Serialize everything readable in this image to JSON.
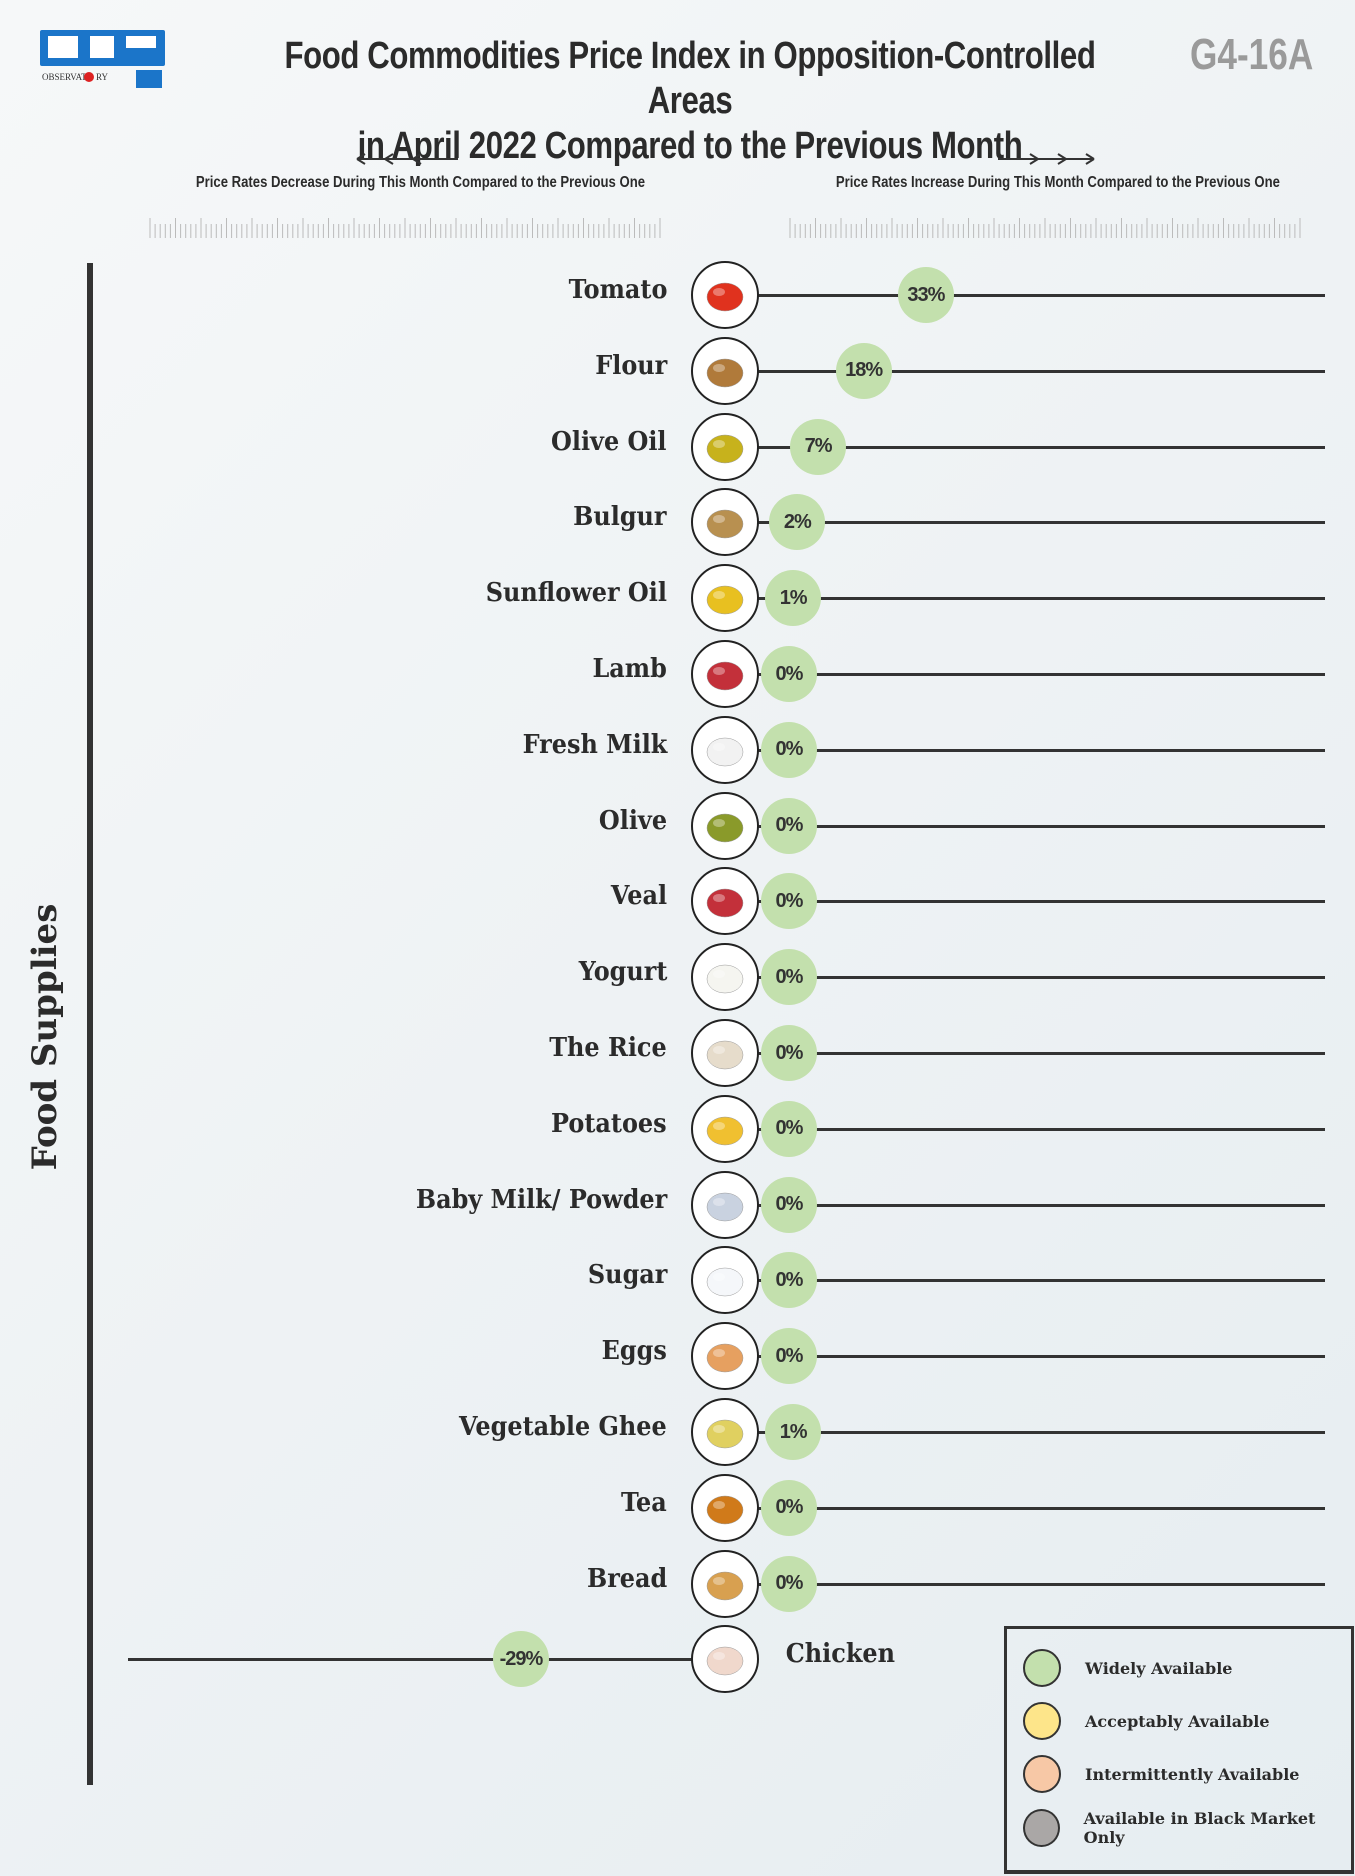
{
  "header": {
    "logo_text": "OBSERVATORY",
    "title_line1": "Food  Commodities Price Index in Opposition-Controlled Areas",
    "title_line2": "in April 2022 Compared to the Previous Month",
    "code": "G4-16A"
  },
  "axis": {
    "decrease_label": "Price Rates Decrease During This Month Compared to the Previous One",
    "increase_label": "Price Rates Increase During This Month Compared to the Previous One"
  },
  "side_label": "Food Supplies",
  "colors": {
    "widely": "#c3e0ad",
    "acceptably": "#fde58a",
    "intermittently": "#f7c8a6",
    "black_market": "#aaa7a6"
  },
  "chart_data": {
    "type": "lollipop",
    "unit": "%",
    "items": [
      {
        "name": "Tomato",
        "value": 33,
        "label": "33%",
        "availability": "Widely Available",
        "icon": "tomato-icon"
      },
      {
        "name": "Flour",
        "value": 18,
        "label": "18%",
        "availability": "Widely Available",
        "icon": "flour-sack-icon"
      },
      {
        "name": "Olive Oil",
        "value": 7,
        "label": "7%",
        "availability": "Widely Available",
        "icon": "olive-oil-bottle-icon"
      },
      {
        "name": "Bulgur",
        "value": 2,
        "label": "2%",
        "availability": "Widely Available",
        "icon": "bulgur-icon"
      },
      {
        "name": "Sunflower Oil",
        "value": 1,
        "label": "1%",
        "availability": "Widely Available",
        "icon": "sunflower-oil-icon"
      },
      {
        "name": "Lamb",
        "value": 0,
        "label": "0%",
        "availability": "Widely Available",
        "icon": "meat-icon"
      },
      {
        "name": "Fresh Milk",
        "value": 0,
        "label": "0%",
        "availability": "Widely Available",
        "icon": "milk-jug-icon"
      },
      {
        "name": "Olive",
        "value": 0,
        "label": "0%",
        "availability": "Widely Available",
        "icon": "olives-icon"
      },
      {
        "name": "Veal",
        "value": 0,
        "label": "0%",
        "availability": "Widely Available",
        "icon": "meat-icon"
      },
      {
        "name": "Yogurt",
        "value": 0,
        "label": "0%",
        "availability": "Widely Available",
        "icon": "yogurt-bowl-icon"
      },
      {
        "name": "The Rice",
        "value": 0,
        "label": "0%",
        "availability": "Widely Available",
        "icon": "rice-spoon-icon"
      },
      {
        "name": "Potatoes",
        "value": 0,
        "label": "0%",
        "availability": "Widely Available",
        "icon": "potatoes-icon"
      },
      {
        "name": "Baby Milk/ Powder",
        "value": 0,
        "label": "0%",
        "availability": "Widely Available",
        "icon": "formula-can-icon"
      },
      {
        "name": "Sugar",
        "value": 0,
        "label": "0%",
        "availability": "Widely Available",
        "icon": "sugar-pile-icon"
      },
      {
        "name": "Eggs",
        "value": 0,
        "label": "0%",
        "availability": "Widely Available",
        "icon": "eggs-icon"
      },
      {
        "name": "Vegetable Ghee",
        "value": 1,
        "label": "1%",
        "availability": "Widely Available",
        "icon": "ghee-can-icon"
      },
      {
        "name": "Tea",
        "value": 0,
        "label": "0%",
        "availability": "Widely Available",
        "icon": "tea-cup-icon"
      },
      {
        "name": "Bread",
        "value": 0,
        "label": "0%",
        "availability": "Widely Available",
        "icon": "bread-icon"
      },
      {
        "name": "Chicken",
        "value": -29,
        "label": "-29%",
        "availability": "Widely Available",
        "icon": "chicken-icon"
      }
    ],
    "xlim": [
      -100,
      100
    ],
    "legend": [
      "Widely Available",
      "Acceptably Available",
      "Intermittently Available",
      "Available in Black Market Only"
    ],
    "legend_position": "bottom-right"
  }
}
